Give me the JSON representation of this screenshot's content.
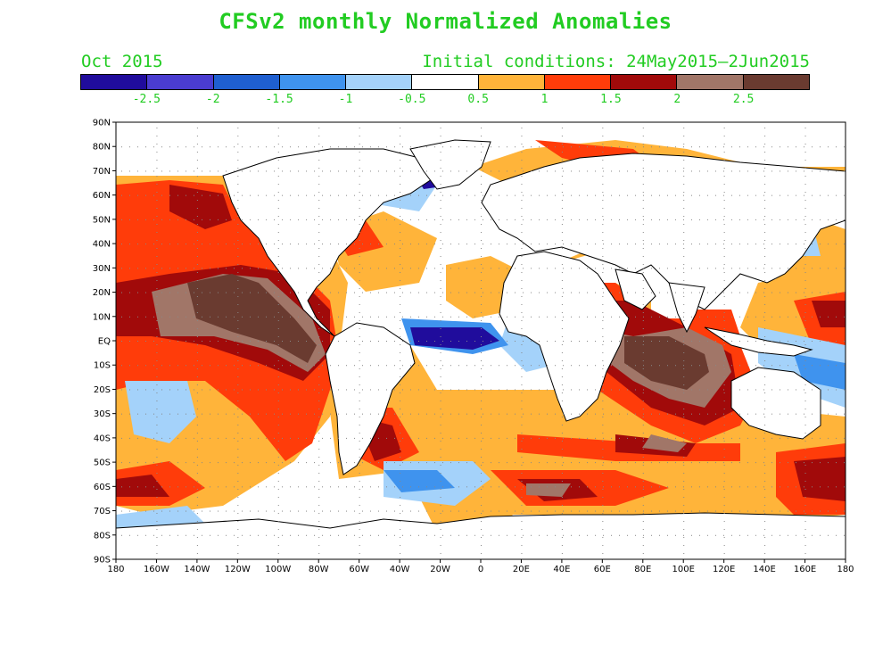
{
  "title": "CFSv2 monthly Normalized Anomalies",
  "valid_month": "Oct 2015",
  "initial_conditions": "Initial conditions: 24May2015—2Jun2015",
  "colors": {
    "text": "#22cc22",
    "land_outline": "#000000",
    "scale": [
      "#200c9c",
      "#4a3cd0",
      "#1f5fd0",
      "#3f93ee",
      "#a4d2fa",
      "#ffffff",
      "#ffb43a",
      "#ff3c0a",
      "#a10a0a",
      "#a17668",
      "#6a3b30"
    ]
  },
  "legend": {
    "labels": [
      "-2.5",
      "-2",
      "-1.5",
      "-1",
      "-0.5",
      "0.5",
      "1",
      "1.5",
      "2",
      "2.5"
    ]
  },
  "axes": {
    "lat_labels": [
      "90N",
      "80N",
      "70N",
      "60N",
      "50N",
      "40N",
      "30N",
      "20N",
      "10N",
      "EQ",
      "10S",
      "20S",
      "30S",
      "40S",
      "50S",
      "60S",
      "70S",
      "80S",
      "90S"
    ],
    "lon_labels": [
      "180",
      "160W",
      "140W",
      "120W",
      "100W",
      "80W",
      "60W",
      "40W",
      "20W",
      "0",
      "20E",
      "40E",
      "60E",
      "80E",
      "100E",
      "120E",
      "140E",
      "160E",
      "180"
    ]
  }
}
